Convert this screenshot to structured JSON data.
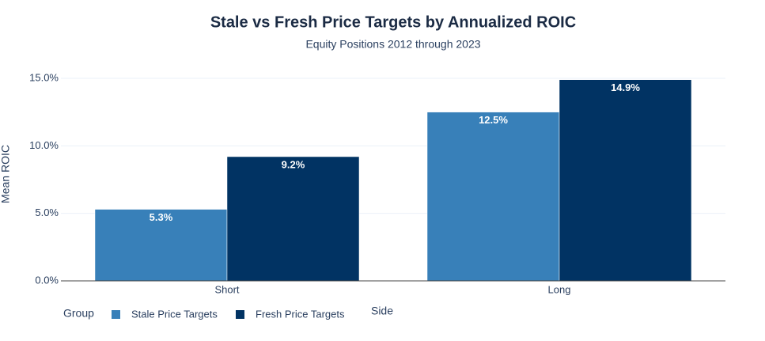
{
  "chart_data": {
    "type": "bar",
    "title": "Stale vs Fresh Price Targets by Annualized ROIC",
    "subtitle": "Equity Positions 2012 through 2023",
    "x_label": "Side",
    "y_label": "Mean ROIC",
    "legend_title": "Group",
    "categories": [
      "Short",
      "Long"
    ],
    "series": [
      {
        "name": "Stale Price Targets",
        "color": "#3880b9",
        "values": [
          5.3,
          12.5
        ],
        "value_labels": [
          "5.3%",
          "12.5%"
        ]
      },
      {
        "name": "Fresh Price Targets",
        "color": "#013363",
        "values": [
          9.2,
          14.9
        ],
        "value_labels": [
          "9.2%",
          "14.9%"
        ]
      }
    ],
    "ylim": [
      0,
      15.68
    ],
    "yticks": [
      {
        "value": 0,
        "label": "0.0%"
      },
      {
        "value": 5,
        "label": "5.0%"
      },
      {
        "value": 10,
        "label": "10.0%"
      },
      {
        "value": 15,
        "label": "15.0%"
      }
    ],
    "grid": true
  }
}
